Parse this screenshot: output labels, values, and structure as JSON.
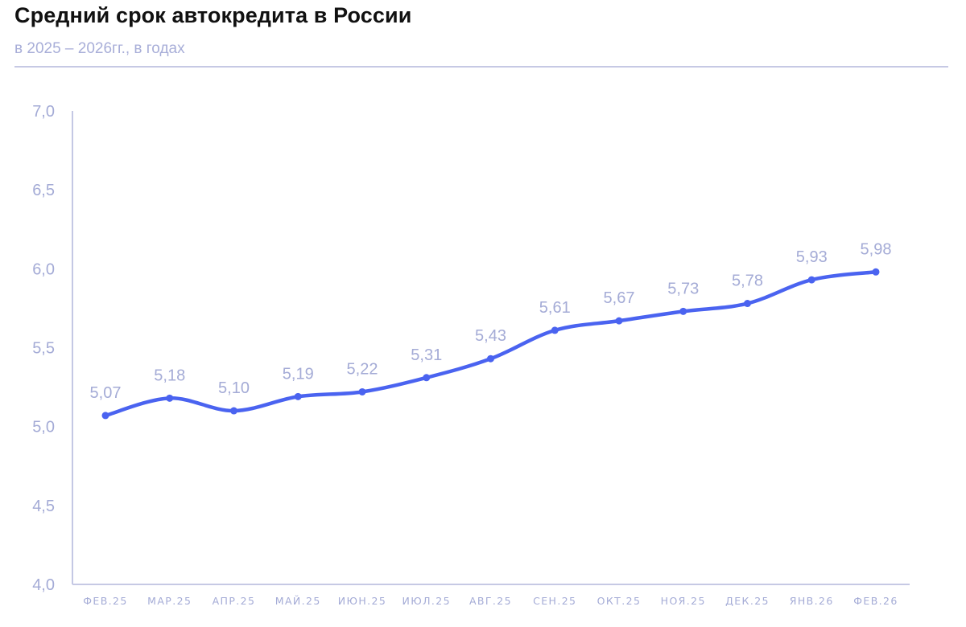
{
  "header": {
    "title": "Средний срок автокредита в России",
    "subtitle": "в 2025 – 2026гг., в годах"
  },
  "colors": {
    "line": "#4a63f0",
    "axis": "#a4abd6",
    "labels": "#a4abd6",
    "rule": "#c6c9e4"
  },
  "chart_data": {
    "type": "line",
    "title": "Средний срок автокредита в России",
    "subtitle": "в 2025 – 2026гг., в годах",
    "xlabel": "",
    "ylabel": "",
    "ylim": [
      4.0,
      7.0
    ],
    "yticks": [
      "4,0",
      "4,5",
      "5,0",
      "5,5",
      "6,0",
      "6,5",
      "7,0"
    ],
    "grid": false,
    "legend": null,
    "categories": [
      "ФЕВ.25",
      "МАР.25",
      "АПР.25",
      "МАЙ.25",
      "ИЮН.25",
      "ИЮЛ.25",
      "АВГ.25",
      "СЕН.25",
      "ОКТ.25",
      "НОЯ.25",
      "ДЕК.25",
      "ЯНВ.26",
      "ФЕВ.26"
    ],
    "values": [
      5.07,
      5.18,
      5.1,
      5.19,
      5.22,
      5.31,
      5.43,
      5.61,
      5.67,
      5.73,
      5.78,
      5.93,
      5.98
    ],
    "value_labels": [
      "5,07",
      "5,18",
      "5,10",
      "5,19",
      "5,22",
      "5,31",
      "5,43",
      "5,61",
      "5,67",
      "5,73",
      "5,78",
      "5,93",
      "5,98"
    ],
    "smooth": true,
    "markers": true
  }
}
